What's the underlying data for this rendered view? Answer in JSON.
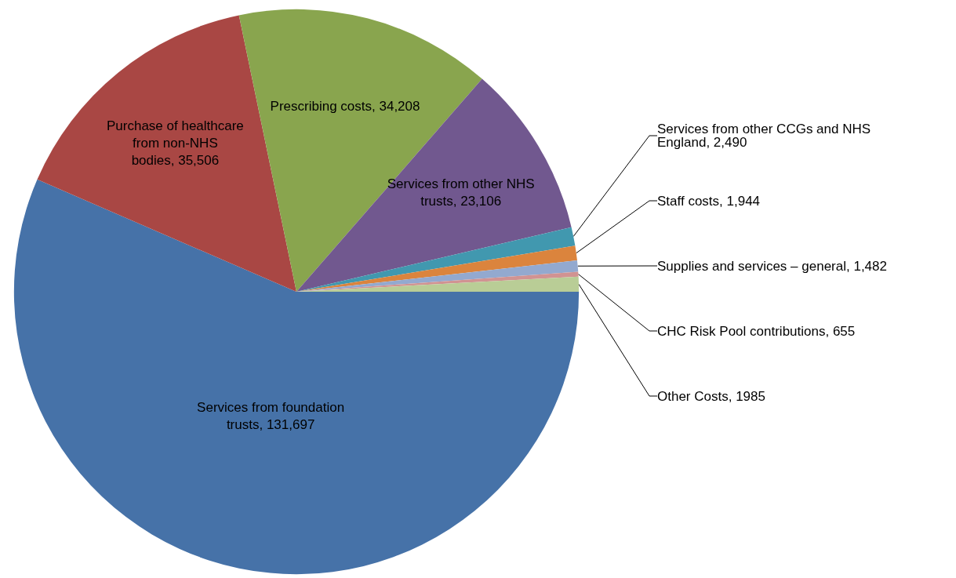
{
  "chart_data": {
    "type": "pie",
    "categories": [
      "Services from foundation trusts",
      "Purchase of healthcare from non-NHS bodies",
      "Prescribing costs",
      "Services from other NHS trusts",
      "Services from other CCGs and NHS England",
      "Staff costs",
      "Supplies and services – general",
      "CHC Risk Pool contributions",
      "Other Costs"
    ],
    "values": [
      131697,
      35506,
      34208,
      23106,
      2490,
      1944,
      1482,
      655,
      1985
    ],
    "value_labels": [
      "131,697",
      "35,506",
      "34,208",
      "23,106",
      "2,490",
      "1,944",
      "1,482",
      "655",
      "1985"
    ],
    "colors": [
      "#4672a8",
      "#a94744",
      "#89a54e",
      "#71588f",
      "#4198af",
      "#db843d",
      "#93a9cf",
      "#d19392",
      "#b9cd96"
    ],
    "legend": false
  }
}
